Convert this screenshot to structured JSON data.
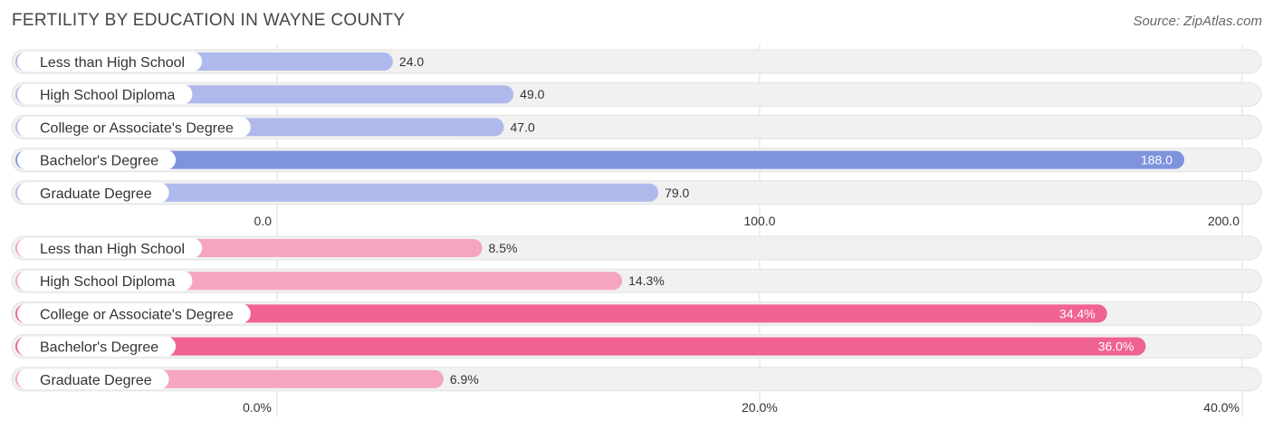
{
  "title": "FERTILITY BY EDUCATION IN WAYNE COUNTY",
  "source": "Source: ZipAtlas.com",
  "chart_data": [
    {
      "type": "bar",
      "orientation": "horizontal",
      "categories": [
        "Less than High School",
        "High School Diploma",
        "College or Associate's Degree",
        "Bachelor's Degree",
        "Graduate Degree"
      ],
      "values": [
        24.0,
        49.0,
        47.0,
        188.0,
        79.0
      ],
      "value_labels": [
        "24.0",
        "49.0",
        "47.0",
        "188.0",
        "79.0"
      ],
      "xlim": [
        0,
        200
      ],
      "ticks": [
        "0.0",
        "100.0",
        "200.0"
      ],
      "colors": [
        "#b0b9ec",
        "#b0b9ec",
        "#b0b9ec",
        "#7f93de",
        "#b0b9ec"
      ],
      "grid": true
    },
    {
      "type": "bar",
      "orientation": "horizontal",
      "categories": [
        "Less than High School",
        "High School Diploma",
        "College or Associate's Degree",
        "Bachelor's Degree",
        "Graduate Degree"
      ],
      "values": [
        8.5,
        14.3,
        34.4,
        36.0,
        6.9
      ],
      "value_labels": [
        "8.5%",
        "14.3%",
        "34.4%",
        "36.0%",
        "6.9%"
      ],
      "xlim": [
        0,
        40
      ],
      "ticks": [
        "0.0%",
        "20.0%",
        "40.0%"
      ],
      "colors": [
        "#f6a5bf",
        "#f6a5bf",
        "#f0628f",
        "#f0628f",
        "#f6a5bf"
      ],
      "grid": true
    }
  ]
}
